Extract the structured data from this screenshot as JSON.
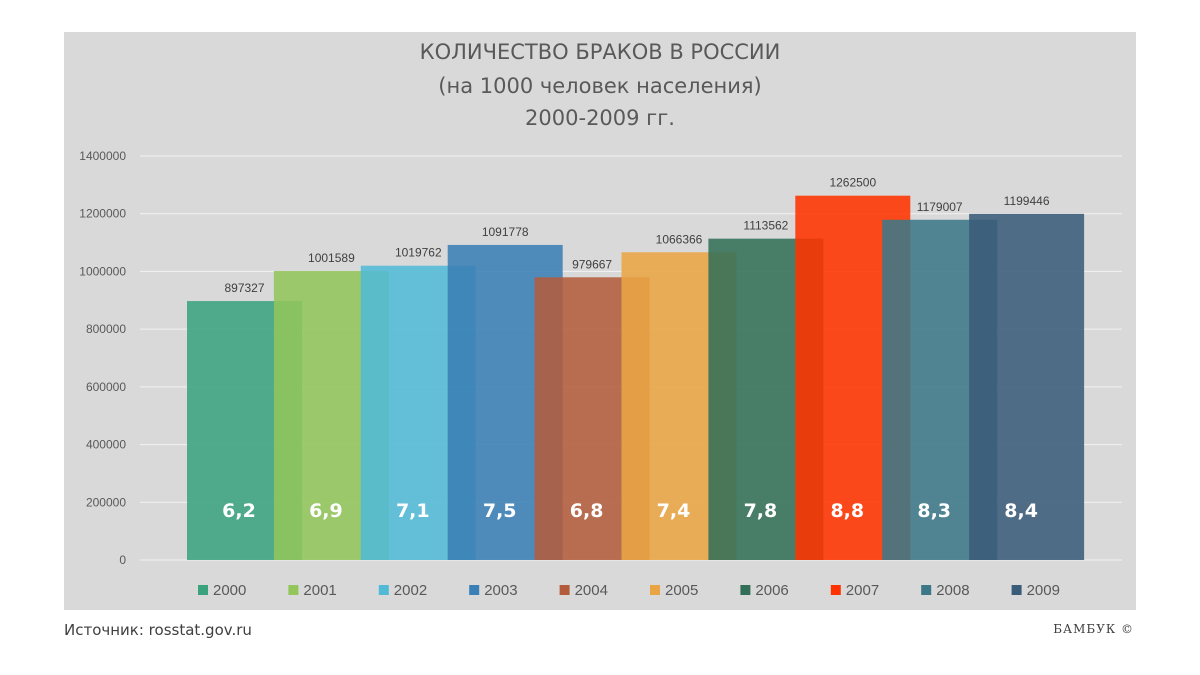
{
  "title": {
    "line1": "КОЛИЧЕСТВО БРАКОВ В РОССИИ",
    "line2": "(на 1000 человек населения)",
    "line3": "2000-2009 гг."
  },
  "source": "Источник: rosstat.gov.ru",
  "brand": "БАМБУК  ©",
  "chart_data": {
    "type": "bar",
    "title": "КОЛИЧЕСТВО БРАКОВ В РОССИИ (на 1000 человек населения) 2000-2009 гг.",
    "xlabel": "",
    "ylabel": "",
    "ylim": [
      0,
      1400000
    ],
    "yticks": [
      "0",
      "200000",
      "400000",
      "600000",
      "800000",
      "1000000",
      "1200000",
      "1400000"
    ],
    "grid": true,
    "legend_position": "bottom",
    "categories": [
      "2000",
      "2001",
      "2002",
      "2003",
      "2004",
      "2005",
      "2006",
      "2007",
      "2008",
      "2009"
    ],
    "values": [
      897327,
      1001589,
      1019762,
      1091778,
      979667,
      1066366,
      1113562,
      1262500,
      1179007,
      1199446
    ],
    "value_labels": [
      "897327",
      "1001589",
      "1019762",
      "1091778",
      "979667",
      "1066366",
      "1113562",
      "1262500",
      "1179007",
      "1199446"
    ],
    "rates": [
      "6,2",
      "6,9",
      "7,1",
      "7,5",
      "6,8",
      "7,4",
      "7,8",
      "8,8",
      "8,3",
      "8,4"
    ],
    "colors": [
      "#3aa37e",
      "#92c55a",
      "#52bad6",
      "#3a7fb5",
      "#b35c3c",
      "#e9a544",
      "#336f58",
      "#ff3300",
      "#3c7787",
      "#3a5c7a"
    ]
  }
}
